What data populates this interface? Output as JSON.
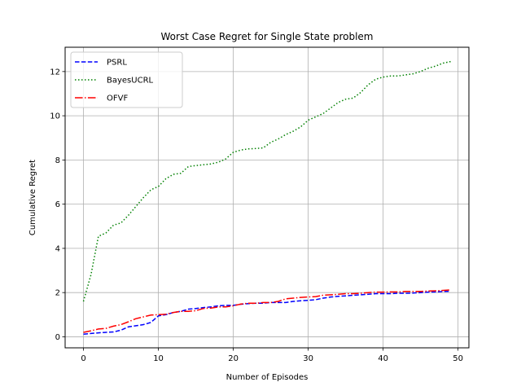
{
  "chart_data": {
    "type": "line",
    "title": "Worst Case Regret for Single State problem",
    "xlabel": "Number of Episodes",
    "ylabel": "Cumulative Regret",
    "xlim": [
      -2.45,
      51.45
    ],
    "ylim": [
      -0.5,
      13.1
    ],
    "xticks": [
      0,
      10,
      20,
      30,
      40,
      50
    ],
    "yticks": [
      0,
      2,
      4,
      6,
      8,
      10,
      12
    ],
    "grid": true,
    "legend_position": "upper-left",
    "series": [
      {
        "name": "PSRL",
        "color": "#0000ff",
        "style": "dashed",
        "x": [
          0,
          1,
          2,
          3,
          4,
          5,
          6,
          7,
          8,
          9,
          10,
          11,
          12,
          13,
          14,
          15,
          16,
          17,
          18,
          19,
          20,
          21,
          22,
          23,
          24,
          25,
          26,
          27,
          28,
          29,
          30,
          31,
          32,
          33,
          34,
          35,
          36,
          37,
          38,
          39,
          40,
          41,
          42,
          43,
          44,
          45,
          46,
          47,
          48,
          49
        ],
        "y": [
          0.12,
          0.15,
          0.18,
          0.2,
          0.22,
          0.3,
          0.45,
          0.5,
          0.55,
          0.65,
          0.95,
          1.0,
          1.1,
          1.15,
          1.25,
          1.28,
          1.32,
          1.35,
          1.4,
          1.42,
          1.42,
          1.47,
          1.5,
          1.52,
          1.52,
          1.55,
          1.55,
          1.55,
          1.6,
          1.63,
          1.65,
          1.68,
          1.75,
          1.8,
          1.83,
          1.85,
          1.88,
          1.9,
          1.92,
          1.95,
          1.95,
          1.95,
          1.97,
          1.97,
          1.98,
          2.0,
          2.02,
          2.03,
          2.05,
          2.06
        ]
      },
      {
        "name": "BayesUCRL",
        "color": "#008000",
        "style": "dotted",
        "x": [
          0,
          1,
          2,
          3,
          4,
          5,
          6,
          7,
          8,
          9,
          10,
          11,
          12,
          13,
          14,
          15,
          16,
          17,
          18,
          19,
          20,
          21,
          22,
          23,
          24,
          25,
          26,
          27,
          28,
          29,
          30,
          31,
          32,
          33,
          34,
          35,
          36,
          37,
          38,
          39,
          40,
          41,
          42,
          43,
          44,
          45,
          46,
          47,
          48,
          49
        ],
        "y": [
          1.6,
          2.8,
          4.55,
          4.7,
          5.05,
          5.15,
          5.5,
          5.9,
          6.3,
          6.65,
          6.8,
          7.15,
          7.35,
          7.4,
          7.7,
          7.75,
          7.78,
          7.82,
          7.9,
          8.05,
          8.35,
          8.45,
          8.5,
          8.52,
          8.55,
          8.8,
          8.95,
          9.15,
          9.3,
          9.5,
          9.8,
          9.95,
          10.1,
          10.35,
          10.6,
          10.75,
          10.8,
          11.05,
          11.4,
          11.65,
          11.75,
          11.8,
          11.8,
          11.85,
          11.9,
          12.0,
          12.15,
          12.25,
          12.38,
          12.45
        ]
      },
      {
        "name": "OFVF",
        "color": "#ff0000",
        "style": "dashdot",
        "x": [
          0,
          1,
          2,
          3,
          4,
          5,
          6,
          7,
          8,
          9,
          10,
          11,
          12,
          13,
          14,
          15,
          16,
          17,
          18,
          19,
          20,
          21,
          22,
          23,
          24,
          25,
          26,
          27,
          28,
          29,
          30,
          31,
          32,
          33,
          34,
          35,
          36,
          37,
          38,
          39,
          40,
          41,
          42,
          43,
          44,
          45,
          46,
          47,
          48,
          49
        ],
        "y": [
          0.2,
          0.27,
          0.35,
          0.38,
          0.48,
          0.55,
          0.68,
          0.82,
          0.9,
          0.98,
          1.0,
          1.02,
          1.1,
          1.15,
          1.15,
          1.18,
          1.28,
          1.3,
          1.35,
          1.35,
          1.4,
          1.48,
          1.52,
          1.52,
          1.55,
          1.55,
          1.6,
          1.72,
          1.75,
          1.78,
          1.8,
          1.82,
          1.88,
          1.9,
          1.92,
          1.95,
          1.95,
          1.97,
          2.0,
          2.02,
          2.02,
          2.03,
          2.03,
          2.05,
          2.05,
          2.05,
          2.07,
          2.08,
          2.1,
          2.12
        ]
      }
    ]
  }
}
